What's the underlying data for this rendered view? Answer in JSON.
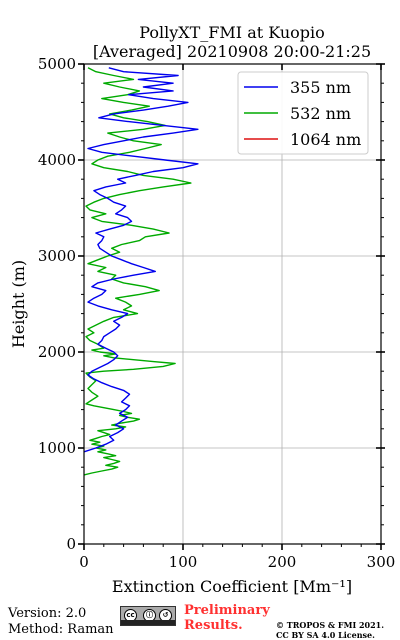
{
  "chart_data": {
    "type": "line",
    "title_line1": "PollyXT_FMI at Kuopio",
    "title_line2": "[Averaged] 20210908 20:00-21:25",
    "xlabel": "Extinction Coefficient [Mm⁻¹]",
    "ylabel": "Height (m)",
    "xlim": [
      0,
      300
    ],
    "ylim": [
      0,
      5000
    ],
    "xticks": [
      "0",
      "100",
      "200",
      "300"
    ],
    "yticks": [
      "0",
      "1000",
      "2000",
      "3000",
      "4000",
      "5000"
    ],
    "grid": true,
    "legend_position": "top-right",
    "series": [
      {
        "name": "355 nm",
        "color": "#0000ee",
        "points": [
          [
            0,
            960
          ],
          [
            12,
            1000
          ],
          [
            22,
            1040
          ],
          [
            30,
            1080
          ],
          [
            26,
            1120
          ],
          [
            34,
            1160
          ],
          [
            40,
            1200
          ],
          [
            32,
            1240
          ],
          [
            38,
            1280
          ],
          [
            44,
            1320
          ],
          [
            36,
            1360
          ],
          [
            42,
            1400
          ],
          [
            46,
            1440
          ],
          [
            38,
            1480
          ],
          [
            42,
            1520
          ],
          [
            46,
            1560
          ],
          [
            40,
            1600
          ],
          [
            28,
            1640
          ],
          [
            18,
            1680
          ],
          [
            10,
            1720
          ],
          [
            4,
            1760
          ],
          [
            8,
            1800
          ],
          [
            16,
            1840
          ],
          [
            24,
            1880
          ],
          [
            30,
            1920
          ],
          [
            34,
            1960
          ],
          [
            30,
            2000
          ],
          [
            22,
            2040
          ],
          [
            14,
            2080
          ],
          [
            18,
            2120
          ],
          [
            20,
            2160
          ],
          [
            26,
            2200
          ],
          [
            32,
            2240
          ],
          [
            36,
            2280
          ],
          [
            30,
            2320
          ],
          [
            38,
            2360
          ],
          [
            44,
            2400
          ],
          [
            28,
            2440
          ],
          [
            14,
            2480
          ],
          [
            4,
            2520
          ],
          [
            10,
            2560
          ],
          [
            18,
            2600
          ],
          [
            22,
            2640
          ],
          [
            8,
            2680
          ],
          [
            14,
            2720
          ],
          [
            30,
            2760
          ],
          [
            50,
            2800
          ],
          [
            72,
            2840
          ],
          [
            60,
            2880
          ],
          [
            48,
            2920
          ],
          [
            38,
            2960
          ],
          [
            28,
            3000
          ],
          [
            22,
            3040
          ],
          [
            16,
            3080
          ],
          [
            14,
            3120
          ],
          [
            18,
            3160
          ],
          [
            20,
            3200
          ],
          [
            12,
            3240
          ],
          [
            26,
            3280
          ],
          [
            40,
            3320
          ],
          [
            48,
            3360
          ],
          [
            44,
            3400
          ],
          [
            32,
            3440
          ],
          [
            38,
            3480
          ],
          [
            42,
            3520
          ],
          [
            30,
            3560
          ],
          [
            24,
            3600
          ],
          [
            16,
            3640
          ],
          [
            10,
            3680
          ],
          [
            22,
            3720
          ],
          [
            42,
            3760
          ],
          [
            34,
            3800
          ],
          [
            52,
            3840
          ],
          [
            70,
            3880
          ],
          [
            100,
            3920
          ],
          [
            115,
            3960
          ],
          [
            82,
            4000
          ],
          [
            50,
            4040
          ],
          [
            18,
            4080
          ],
          [
            4,
            4120
          ],
          [
            20,
            4160
          ],
          [
            40,
            4200
          ],
          [
            60,
            4240
          ],
          [
            90,
            4280
          ],
          [
            115,
            4320
          ],
          [
            80,
            4360
          ],
          [
            45,
            4400
          ],
          [
            15,
            4440
          ],
          [
            30,
            4480
          ],
          [
            60,
            4520
          ],
          [
            85,
            4560
          ],
          [
            105,
            4600
          ],
          [
            70,
            4640
          ],
          [
            45,
            4680
          ],
          [
            90,
            4720
          ],
          [
            60,
            4760
          ],
          [
            90,
            4800
          ],
          [
            55,
            4840
          ],
          [
            95,
            4880
          ],
          [
            40,
            4920
          ],
          [
            25,
            4960
          ]
        ]
      },
      {
        "name": "532 nm",
        "color": "#00aa00",
        "points": [
          [
            0,
            720
          ],
          [
            8,
            740
          ],
          [
            18,
            760
          ],
          [
            28,
            780
          ],
          [
            34,
            800
          ],
          [
            22,
            820
          ],
          [
            30,
            840
          ],
          [
            36,
            860
          ],
          [
            28,
            880
          ],
          [
            20,
            900
          ],
          [
            32,
            920
          ],
          [
            24,
            940
          ],
          [
            14,
            960
          ],
          [
            22,
            980
          ],
          [
            12,
            1000
          ],
          [
            20,
            1020
          ],
          [
            8,
            1040
          ],
          [
            16,
            1060
          ],
          [
            6,
            1080
          ],
          [
            12,
            1100
          ],
          [
            18,
            1120
          ],
          [
            26,
            1140
          ],
          [
            20,
            1160
          ],
          [
            14,
            1180
          ],
          [
            32,
            1200
          ],
          [
            42,
            1220
          ],
          [
            28,
            1240
          ],
          [
            38,
            1260
          ],
          [
            50,
            1280
          ],
          [
            56,
            1300
          ],
          [
            44,
            1320
          ],
          [
            36,
            1340
          ],
          [
            48,
            1360
          ],
          [
            40,
            1380
          ],
          [
            30,
            1400
          ],
          [
            20,
            1420
          ],
          [
            10,
            1440
          ],
          [
            2,
            1460
          ],
          [
            8,
            1500
          ],
          [
            14,
            1540
          ],
          [
            8,
            1580
          ],
          [
            4,
            1620
          ],
          [
            8,
            1660
          ],
          [
            12,
            1700
          ],
          [
            6,
            1740
          ],
          [
            2,
            1780
          ],
          [
            20,
            1800
          ],
          [
            50,
            1820
          ],
          [
            80,
            1850
          ],
          [
            92,
            1880
          ],
          [
            70,
            1900
          ],
          [
            50,
            1920
          ],
          [
            30,
            1940
          ],
          [
            20,
            1960
          ],
          [
            32,
            1980
          ],
          [
            16,
            2000
          ],
          [
            8,
            2020
          ],
          [
            20,
            2040
          ],
          [
            14,
            2080
          ],
          [
            6,
            2120
          ],
          [
            2,
            2160
          ],
          [
            10,
            2200
          ],
          [
            4,
            2240
          ],
          [
            12,
            2280
          ],
          [
            20,
            2320
          ],
          [
            30,
            2360
          ],
          [
            54,
            2400
          ],
          [
            40,
            2440
          ],
          [
            48,
            2480
          ],
          [
            42,
            2520
          ],
          [
            32,
            2560
          ],
          [
            56,
            2600
          ],
          [
            76,
            2640
          ],
          [
            62,
            2680
          ],
          [
            40,
            2720
          ],
          [
            28,
            2760
          ],
          [
            32,
            2800
          ],
          [
            14,
            2840
          ],
          [
            22,
            2880
          ],
          [
            4,
            2920
          ],
          [
            14,
            2960
          ],
          [
            24,
            3000
          ],
          [
            36,
            3040
          ],
          [
            28,
            3080
          ],
          [
            38,
            3120
          ],
          [
            56,
            3160
          ],
          [
            62,
            3200
          ],
          [
            86,
            3240
          ],
          [
            70,
            3280
          ],
          [
            48,
            3320
          ],
          [
            18,
            3360
          ],
          [
            8,
            3400
          ],
          [
            22,
            3440
          ],
          [
            6,
            3480
          ],
          [
            2,
            3520
          ],
          [
            10,
            3560
          ],
          [
            20,
            3600
          ],
          [
            36,
            3640
          ],
          [
            56,
            3680
          ],
          [
            80,
            3720
          ],
          [
            108,
            3760
          ],
          [
            90,
            3800
          ],
          [
            60,
            3840
          ],
          [
            44,
            3880
          ],
          [
            20,
            3920
          ],
          [
            8,
            3960
          ],
          [
            14,
            4000
          ],
          [
            24,
            4040
          ],
          [
            46,
            4080
          ],
          [
            62,
            4120
          ],
          [
            78,
            4160
          ],
          [
            50,
            4200
          ],
          [
            36,
            4240
          ],
          [
            24,
            4280
          ],
          [
            60,
            4320
          ],
          [
            82,
            4360
          ],
          [
            64,
            4400
          ],
          [
            40,
            4440
          ],
          [
            26,
            4480
          ],
          [
            48,
            4520
          ],
          [
            66,
            4560
          ],
          [
            40,
            4600
          ],
          [
            18,
            4640
          ],
          [
            44,
            4680
          ],
          [
            56,
            4720
          ],
          [
            36,
            4760
          ],
          [
            20,
            4800
          ],
          [
            50,
            4840
          ],
          [
            30,
            4880
          ],
          [
            12,
            4920
          ],
          [
            4,
            4960
          ]
        ]
      },
      {
        "name": "1064 nm",
        "color": "#dd1111",
        "points": []
      }
    ]
  },
  "footer": {
    "version": "Version: 2.0",
    "method": "Method: Raman",
    "preliminary_line1": "Preliminary",
    "preliminary_line2": "Results.",
    "copyright_line1": "© TROPOS & FMI 2021.",
    "copyright_line2": "CC BY SA 4.0 License.",
    "license_icons": [
      "cc-icon",
      "by-icon",
      "sa-icon"
    ]
  }
}
